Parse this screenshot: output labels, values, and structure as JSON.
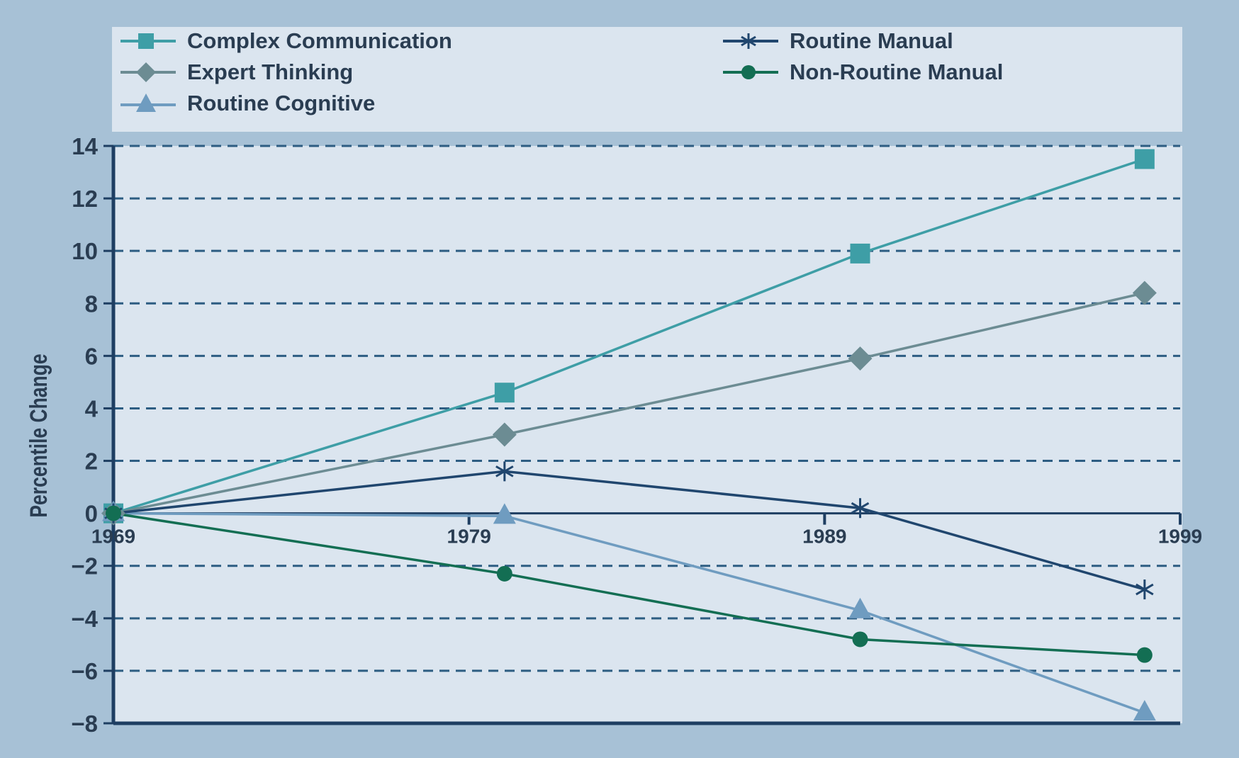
{
  "chart_data": {
    "type": "line",
    "title": "",
    "xlabel": "",
    "ylabel": "Percentile Change",
    "x_ticks": [
      "1969",
      "1979",
      "1989",
      "1999"
    ],
    "y_ticks": [
      14,
      12,
      10,
      8,
      6,
      4,
      2,
      0,
      -2,
      -4,
      -6,
      -8
    ],
    "y_tick_labels": [
      "14",
      "12",
      "10",
      "8",
      "6",
      "4",
      "2",
      "0",
      "−2",
      "−4",
      "−6",
      "−8"
    ],
    "xlim": [
      1969,
      1999
    ],
    "ylim": [
      -8,
      14
    ],
    "grid": true,
    "legend_position": "top",
    "x": [
      1969,
      1980,
      1990,
      1998
    ],
    "series": [
      {
        "name": "Complex Communication",
        "values": [
          0,
          4.6,
          9.9,
          13.5
        ],
        "color": "#3e9ea6",
        "marker": "square"
      },
      {
        "name": "Expert Thinking",
        "values": [
          0,
          3.0,
          5.9,
          8.4
        ],
        "color": "#6c8c93",
        "marker": "diamond"
      },
      {
        "name": "Routine Cognitive",
        "values": [
          0,
          -0.1,
          -3.7,
          -7.6
        ],
        "color": "#6f9cc0",
        "marker": "triangle"
      },
      {
        "name": "Routine Manual",
        "values": [
          0,
          1.6,
          0.2,
          -2.9
        ],
        "color": "#20466e",
        "marker": "star"
      },
      {
        "name": "Non-Routine Manual",
        "values": [
          0,
          -2.3,
          -4.8,
          -5.4
        ],
        "color": "#136e53",
        "marker": "circle"
      }
    ]
  }
}
